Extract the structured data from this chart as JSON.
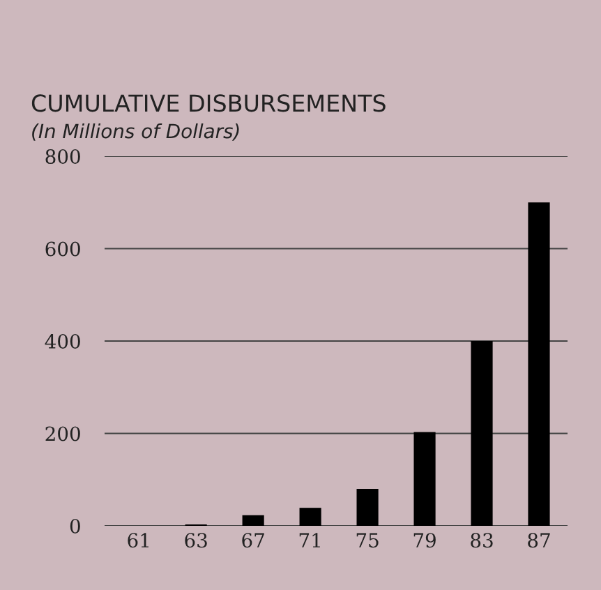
{
  "chart_data": {
    "type": "bar",
    "title": "CUMULATIVE DISBURSEMENTS",
    "subtitle": "(In Millions of Dollars)",
    "categories": [
      "61",
      "63",
      "67",
      "71",
      "75",
      "79",
      "83",
      "87"
    ],
    "values": [
      0,
      3,
      23,
      39,
      80,
      203,
      400,
      700
    ],
    "color": "#000000",
    "ylim": [
      0,
      800
    ],
    "yticks": [
      0,
      200,
      400,
      600,
      800
    ],
    "grid": "y"
  }
}
